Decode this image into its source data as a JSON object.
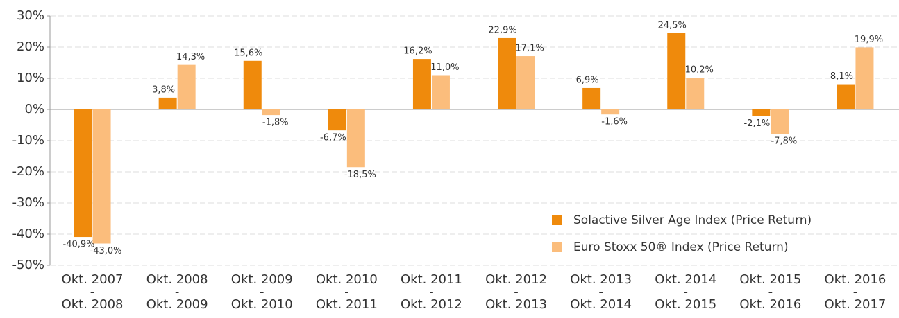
{
  "chart_data": {
    "type": "bar",
    "categories": [
      [
        "Okt. 2007",
        "-",
        "Okt. 2008"
      ],
      [
        "Okt. 2008",
        "-",
        "Okt. 2009"
      ],
      [
        "Okt. 2009",
        "-",
        "Okt. 2010"
      ],
      [
        "Okt. 2010",
        "-",
        "Okt. 2011"
      ],
      [
        "Okt. 2011",
        "-",
        "Okt. 2012"
      ],
      [
        "Okt. 2012",
        "-",
        "Okt. 2013"
      ],
      [
        "Okt. 2013",
        "-",
        "Okt. 2014"
      ],
      [
        "Okt. 2014",
        "-",
        "Okt. 2015"
      ],
      [
        "Okt. 2015",
        "-",
        "Okt. 2016"
      ],
      [
        "Okt. 2016",
        "-",
        "Okt. 2017"
      ]
    ],
    "series": [
      {
        "name": "Solactive Silver Age Index (Price Return)",
        "color": "#ef8a0c",
        "values": [
          -40.9,
          3.8,
          15.6,
          -6.7,
          16.2,
          22.9,
          6.9,
          24.5,
          -2.1,
          8.1
        ],
        "value_labels": [
          "-40,9%",
          "3,8%",
          "15,6%",
          "-6,7%",
          "16,2%",
          "22,9%",
          "6,9%",
          "24,5%",
          "-2,1%",
          "8,1%"
        ]
      },
      {
        "name": "Euro Stoxx 50® Index (Price Return)",
        "color": "#fbbd7c",
        "values": [
          -43.0,
          14.3,
          -1.8,
          -18.5,
          11.0,
          17.1,
          -1.6,
          10.2,
          -7.8,
          19.9
        ],
        "value_labels": [
          "-43,0%",
          "14,3%",
          "-1,8%",
          "-18,5%",
          "11,0%",
          "17,1%",
          "-1,6%",
          "10,2%",
          "-7,8%",
          "19,9%"
        ]
      }
    ],
    "ylim": [
      -50,
      30
    ],
    "yticks": [
      {
        "value": -50,
        "label": "-50%"
      },
      {
        "value": -40,
        "label": "-40%"
      },
      {
        "value": -30,
        "label": "-30%"
      },
      {
        "value": -20,
        "label": "-20%"
      },
      {
        "value": -10,
        "label": "-10%"
      },
      {
        "value": 0,
        "label": "0%"
      },
      {
        "value": 10,
        "label": "10%"
      },
      {
        "value": 20,
        "label": "20%"
      },
      {
        "value": 30,
        "label": "30%"
      }
    ],
    "grid": true,
    "legend": "lower right"
  }
}
